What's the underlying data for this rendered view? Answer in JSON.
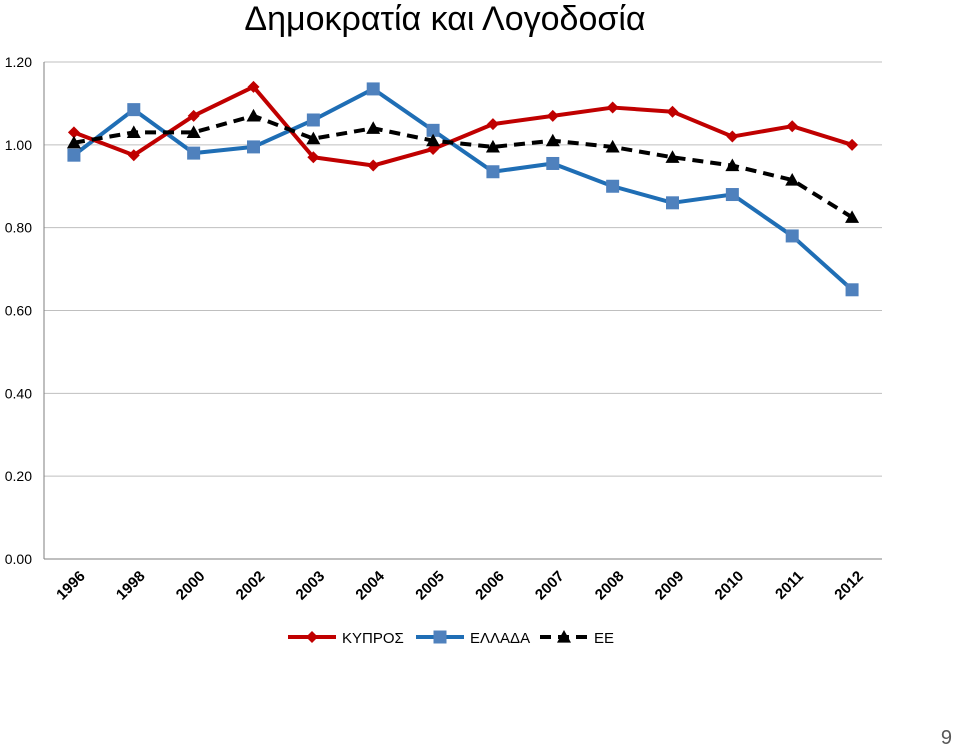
{
  "page": {
    "number": "9"
  },
  "chart_data": {
    "type": "line",
    "title": "Δημοκρατία και Λογοδοσία",
    "xlabel": "",
    "ylabel": "",
    "categories": [
      "1996",
      "1998",
      "2000",
      "2002",
      "2003",
      "2004",
      "2005",
      "2006",
      "2007",
      "2008",
      "2009",
      "2010",
      "2011",
      "2012"
    ],
    "ylim": [
      0,
      1.2
    ],
    "y_ticks": [
      "0.00",
      "0.20",
      "0.40",
      "0.60",
      "0.80",
      "1.00",
      "1.20"
    ],
    "grid": "horizontal",
    "legend_position": "bottom",
    "series": [
      {
        "name": "ΚΥΠΡΟΣ",
        "color": "#C00000",
        "marker": "diamond",
        "dash": "solid",
        "values": [
          1.03,
          0.975,
          1.07,
          1.14,
          0.97,
          0.95,
          0.99,
          1.05,
          1.07,
          1.09,
          1.08,
          1.02,
          1.045,
          1.0
        ]
      },
      {
        "name": "ΕΛΛΑΔΑ",
        "color": "#1F6EB5",
        "marker": "square",
        "dash": "solid",
        "values": [
          0.975,
          1.085,
          0.98,
          0.995,
          1.06,
          1.135,
          1.035,
          0.935,
          0.955,
          0.9,
          0.86,
          0.88,
          0.78,
          0.65
        ]
      },
      {
        "name": "ΕΕ",
        "color": "#000000",
        "marker": "triangle",
        "dash": "dashed",
        "values": [
          1.005,
          1.03,
          1.03,
          1.07,
          1.015,
          1.04,
          1.01,
          0.995,
          1.01,
          0.995,
          0.97,
          0.95,
          0.915,
          0.825
        ]
      }
    ]
  }
}
